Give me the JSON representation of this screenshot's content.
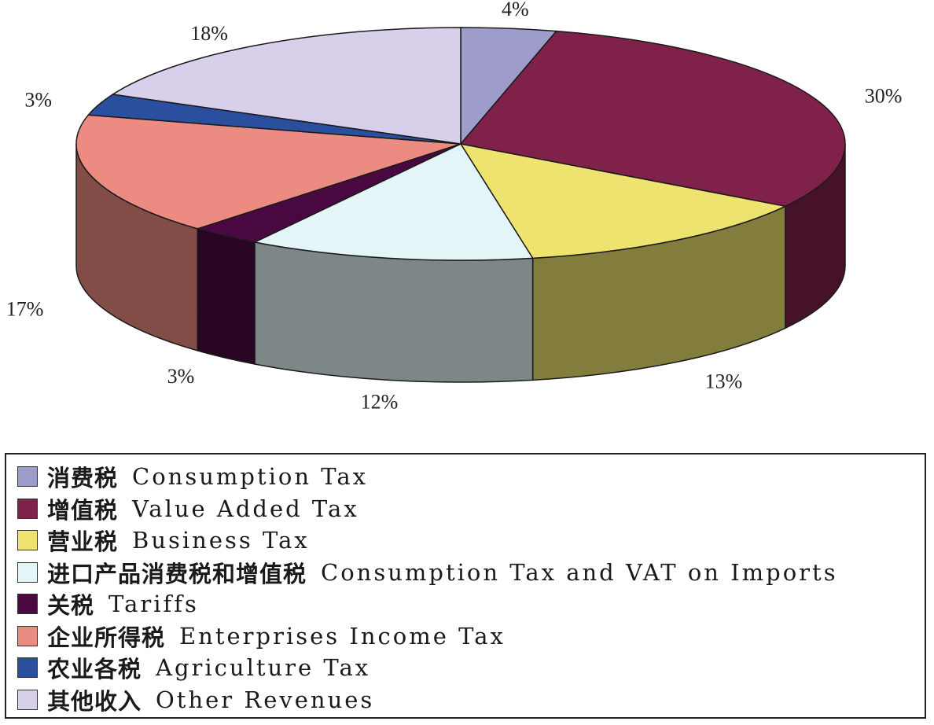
{
  "chart_data": {
    "type": "pie",
    "style": "3d",
    "title": "",
    "slices": [
      {
        "label_zh": "消费税",
        "label_en": "Consumption Tax",
        "value": 4,
        "value_label": "4%",
        "color": "#9d9ccb"
      },
      {
        "label_zh": "增值税",
        "label_en": "Value Added Tax",
        "value": 30,
        "value_label": "30%",
        "color": "#7f2148"
      },
      {
        "label_zh": "营业税",
        "label_en": "Business Tax",
        "value": 13,
        "value_label": "13%",
        "color": "#efe36f"
      },
      {
        "label_zh": "进口产品消费税和增值税",
        "label_en": "Consumption Tax and VAT on Imports",
        "value": 12,
        "value_label": "12%",
        "color": "#e4f5f8"
      },
      {
        "label_zh": "关税",
        "label_en": "Tariffs",
        "value": 3,
        "value_label": "3%",
        "color": "#4a0840"
      },
      {
        "label_zh": "企业所得税",
        "label_en": "Enterprises Income Tax",
        "value": 17,
        "value_label": "17%",
        "color": "#ec8b81"
      },
      {
        "label_zh": "农业各税",
        "label_en": "Agriculture Tax",
        "value": 3,
        "value_label": "3%",
        "color": "#2a4f9e"
      },
      {
        "label_zh": "其他收入",
        "label_en": "Other Revenues",
        "value": 18,
        "value_label": "18%",
        "color": "#d8d0ea"
      }
    ],
    "legend_position": "bottom"
  }
}
